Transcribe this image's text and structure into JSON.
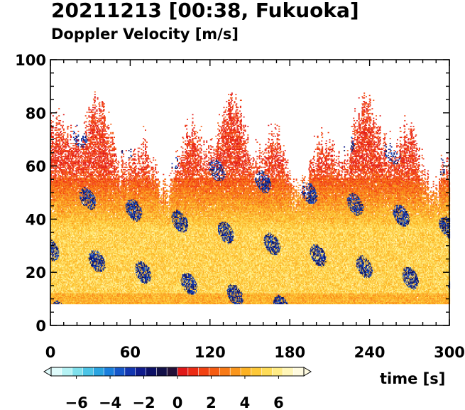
{
  "chart_data": {
    "type": "heatmap",
    "title": "20211213 [00:38, Fukuoka]",
    "subtitle": "Doppler Velocity [m/s]",
    "xlabel": "time [s]",
    "ylabel": "",
    "xlim": [
      0,
      300
    ],
    "ylim": [
      0,
      100
    ],
    "x_ticks": [
      0,
      60,
      120,
      180,
      240,
      300
    ],
    "y_ticks": [
      0,
      20,
      40,
      60,
      80,
      100
    ],
    "data_y_range": [
      8,
      87
    ],
    "colorbar": {
      "range": [
        -7.5,
        7.5
      ],
      "ticks": [
        -6,
        -4,
        -2,
        0,
        2,
        4,
        6
      ],
      "tick_labels": [
        "−6",
        "−4",
        "−2",
        "0",
        "2",
        "4",
        "6"
      ],
      "extend": "both",
      "colors": [
        "#dffbfb",
        "#b5f2f4",
        "#7fe0ec",
        "#4cc4e6",
        "#2aa4e0",
        "#1a7fdc",
        "#1557c9",
        "#1236b0",
        "#101c8c",
        "#0c1066",
        "#121048",
        "#231038",
        "#e01818",
        "#ec2b14",
        "#f24212",
        "#f65c12",
        "#f87a16",
        "#fa961c",
        "#fcb224",
        "#fdc838",
        "#fedc58",
        "#ffec86",
        "#fff6b8",
        "#fffbe0"
      ]
    },
    "description_notes": "Time-height field: mostly positive velocities (red→orange→yellow, strongest near 10–35 m height), with scattered negative (dark blue) patches; top of echo fluctuates between about 45 and 87 m."
  }
}
